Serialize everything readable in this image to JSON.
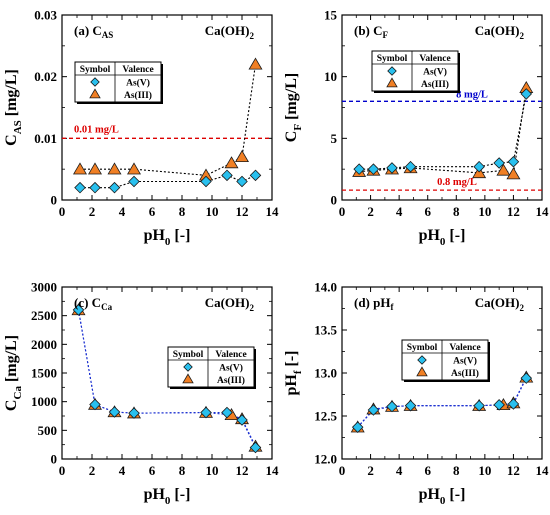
{
  "colors": {
    "as_v": "#29c0ee",
    "as_iii": "#f07f24",
    "marker_edge": "#1a1a1a",
    "refline_red": "#dd0000",
    "refline_blue": "#0000cc",
    "connector": "#000000",
    "connector_blue": "#1a2fd0"
  },
  "legend": {
    "symbol_header": "Symbol",
    "valence_header": "Valence",
    "as_v_label": "As(V)",
    "as_iii_label": "As(III)"
  },
  "chart_data": [
    {
      "id": "a",
      "type": "line",
      "panel_label": "(a) C",
      "panel_sub": "AS",
      "reagent": "Ca(OH)",
      "reagent_sub": "2",
      "ylabel_main": "C",
      "ylabel_sub": "AS",
      "ylabel_unit": "[mg/L]",
      "xlabel_main": "pH",
      "xlabel_sub": "0",
      "xlabel_unit": "[-]",
      "xlim": [
        0,
        14
      ],
      "ylim": [
        0,
        0.03
      ],
      "xticks": [
        0,
        2,
        4,
        6,
        8,
        10,
        12,
        14
      ],
      "yticks": [
        0,
        0.01,
        0.02,
        0.03
      ],
      "ytick_labels": [
        "0",
        "0.01",
        "0.02",
        "0.03"
      ],
      "connector": "black-dotted",
      "reflines": [
        {
          "y": 0.01,
          "label": "0.01 mg/L",
          "color": "red"
        }
      ],
      "series": [
        {
          "name": "As(V)",
          "marker": "diamond",
          "x": [
            1.2,
            2.2,
            3.5,
            4.8,
            9.6,
            11.0,
            12.0,
            12.9
          ],
          "y": [
            0.002,
            0.002,
            0.002,
            0.003,
            0.003,
            0.004,
            0.003,
            0.004
          ]
        },
        {
          "name": "As(III)",
          "marker": "triangle",
          "x": [
            1.2,
            2.2,
            3.5,
            4.8,
            9.6,
            11.3,
            12.0,
            12.9
          ],
          "y": [
            0.005,
            0.005,
            0.005,
            0.005,
            0.004,
            0.006,
            0.007,
            0.022
          ]
        }
      ]
    },
    {
      "id": "b",
      "type": "line",
      "panel_label": "(b) C",
      "panel_sub": "F",
      "reagent": "Ca(OH)",
      "reagent_sub": "2",
      "ylabel_main": "C",
      "ylabel_sub": "F",
      "ylabel_unit": "[mg/L]",
      "xlabel_main": "pH",
      "xlabel_sub": "0",
      "xlabel_unit": "[-]",
      "xlim": [
        0,
        14
      ],
      "ylim": [
        0,
        15
      ],
      "xticks": [
        0,
        2,
        4,
        6,
        8,
        10,
        12,
        14
      ],
      "yticks": [
        0,
        5,
        10,
        15
      ],
      "ytick_labels": [
        "0",
        "5",
        "10",
        "15"
      ],
      "connector": "black-dotted",
      "reflines": [
        {
          "y": 8,
          "label": "8 mg/L",
          "color": "blue"
        },
        {
          "y": 0.8,
          "label": "0.8 mg/L",
          "color": "red"
        }
      ],
      "series": [
        {
          "name": "As(V)",
          "marker": "diamond",
          "x": [
            1.2,
            2.2,
            3.5,
            4.8,
            9.6,
            11.0,
            12.0,
            12.9
          ],
          "y": [
            2.5,
            2.5,
            2.6,
            2.7,
            2.7,
            3.0,
            3.1,
            8.6
          ]
        },
        {
          "name": "As(III)",
          "marker": "triangle",
          "x": [
            1.2,
            2.2,
            3.5,
            4.8,
            9.6,
            11.3,
            12.0,
            12.9
          ],
          "y": [
            2.3,
            2.4,
            2.5,
            2.6,
            2.2,
            2.4,
            2.1,
            9.1
          ]
        }
      ]
    },
    {
      "id": "c",
      "type": "line",
      "panel_label": "(c) C",
      "panel_sub": "Ca",
      "reagent": "Ca(OH)",
      "reagent_sub": "2",
      "ylabel_main": "C",
      "ylabel_sub": "Ca",
      "ylabel_unit": "[mg/L]",
      "xlabel_main": "pH",
      "xlabel_sub": "0",
      "xlabel_unit": "[-]",
      "xlim": [
        0,
        14
      ],
      "ylim": [
        0,
        3000
      ],
      "xticks": [
        0,
        2,
        4,
        6,
        8,
        10,
        12,
        14
      ],
      "yticks": [
        0,
        500,
        1000,
        1500,
        2000,
        2500,
        3000
      ],
      "ytick_labels": [
        "0",
        "500",
        "1000",
        "1500",
        "2000",
        "2500",
        "3000"
      ],
      "connector": "blue-dotted",
      "reflines": [],
      "series": [
        {
          "name": "As(V)",
          "marker": "diamond",
          "x": [
            1.1,
            2.2,
            3.5,
            4.8,
            9.6,
            11.0,
            12.0,
            12.9
          ],
          "y": [
            2600,
            950,
            820,
            800,
            810,
            810,
            680,
            200
          ]
        },
        {
          "name": "As(III)",
          "marker": "triangle",
          "x": [
            1.1,
            2.2,
            3.5,
            4.8,
            9.6,
            11.3,
            12.0,
            12.9
          ],
          "y": [
            2600,
            950,
            820,
            800,
            810,
            770,
            700,
            220
          ]
        }
      ]
    },
    {
      "id": "d",
      "type": "line",
      "panel_label": "(d) pH",
      "panel_sub": "f",
      "reagent": "Ca(OH)",
      "reagent_sub": "2",
      "ylabel_main": "pH",
      "ylabel_sub": "f",
      "ylabel_unit": "[-]",
      "xlabel_main": "pH",
      "xlabel_sub": "0",
      "xlabel_unit": "[-]",
      "xlim": [
        0,
        14
      ],
      "ylim": [
        12.0,
        14.0
      ],
      "xticks": [
        0,
        2,
        4,
        6,
        8,
        10,
        12,
        14
      ],
      "yticks": [
        12.0,
        12.5,
        13.0,
        13.5,
        14.0
      ],
      "ytick_labels": [
        "12.0",
        "12.5",
        "13.0",
        "13.5",
        "14.0"
      ],
      "connector": "blue-dotted",
      "reflines": [],
      "series": [
        {
          "name": "As(V)",
          "marker": "diamond",
          "x": [
            1.1,
            2.2,
            3.5,
            4.8,
            9.6,
            11.0,
            12.0,
            12.9
          ],
          "y": [
            12.37,
            12.57,
            12.61,
            12.62,
            12.62,
            12.63,
            12.64,
            12.94
          ]
        },
        {
          "name": "As(III)",
          "marker": "triangle",
          "x": [
            1.1,
            2.2,
            3.5,
            4.8,
            9.6,
            11.3,
            12.0,
            12.9
          ],
          "y": [
            12.37,
            12.58,
            12.61,
            12.62,
            12.62,
            12.63,
            12.65,
            12.95
          ]
        }
      ]
    }
  ]
}
